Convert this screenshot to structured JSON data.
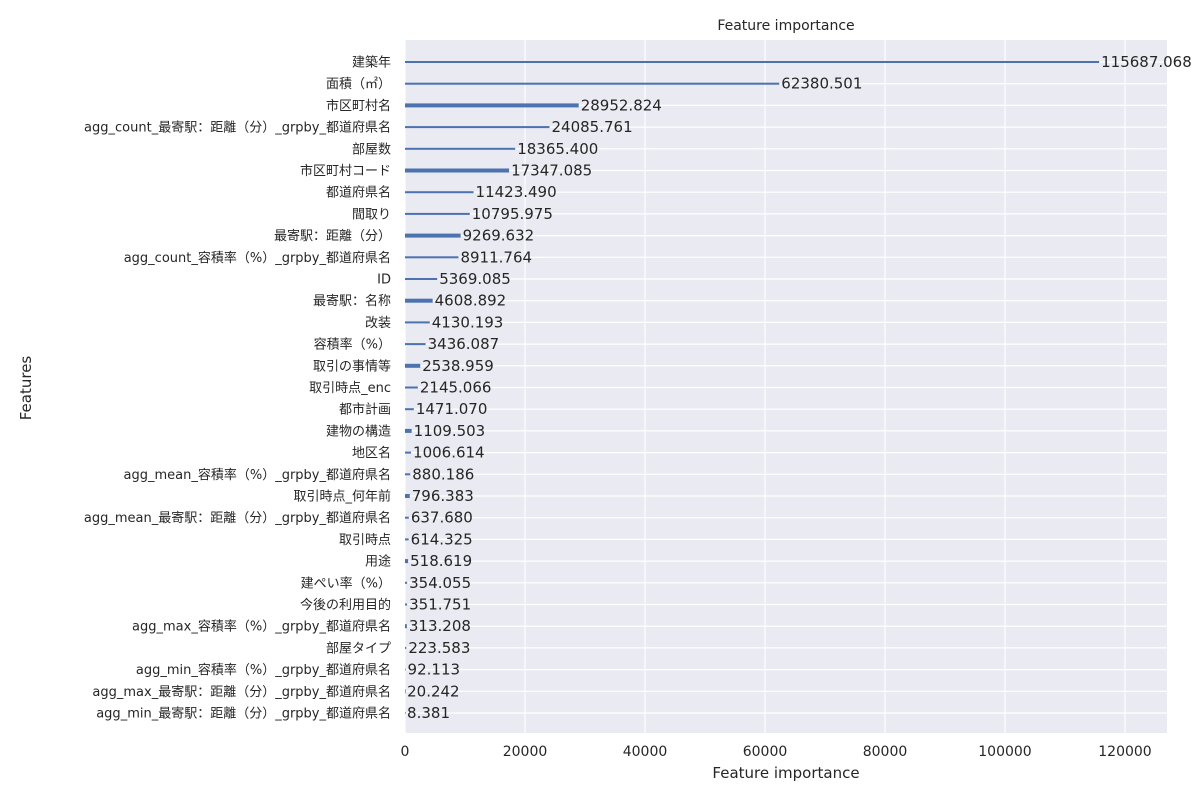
{
  "chart_data": {
    "type": "bar",
    "orientation": "horizontal",
    "title": "Feature importance",
    "xlabel": "Feature importance",
    "ylabel": "Features",
    "xlim": [
      0,
      127000
    ],
    "xticks": [
      0,
      20000,
      40000,
      60000,
      80000,
      100000,
      120000
    ],
    "grid": true,
    "bar_color": "#4c72b0",
    "background_color": "#eaeaf2",
    "categories": [
      "建築年",
      "面積（㎡）",
      "市区町村名",
      "agg_count_最寄駅：距離（分）_grpby_都道府県名",
      "部屋数",
      "市区町村コード",
      "都道府県名",
      "間取り",
      "最寄駅：距離（分）",
      "agg_count_容積率（%）_grpby_都道府県名",
      "ID",
      "最寄駅：名称",
      "改装",
      "容積率（%）",
      "取引の事情等",
      "取引時点_enc",
      "都市計画",
      "建物の構造",
      "地区名",
      "agg_mean_容積率（%）_grpby_都道府県名",
      "取引時点_何年前",
      "agg_mean_最寄駅：距離（分）_grpby_都道府県名",
      "取引時点",
      "用途",
      "建ぺい率（%）",
      "今後の利用目的",
      "agg_max_容積率（%）_grpby_都道府県名",
      "部屋タイプ",
      "agg_min_容積率（%）_grpby_都道府県名",
      "agg_max_最寄駅：距離（分）_grpby_都道府県名",
      "agg_min_最寄駅：距離（分）_grpby_都道府県名"
    ],
    "values": [
      115687.068,
      62380.501,
      28952.824,
      24085.761,
      18365.4,
      17347.085,
      11423.49,
      10795.975,
      9269.632,
      8911.764,
      5369.085,
      4608.892,
      4130.193,
      3436.087,
      2538.959,
      2145.066,
      1471.07,
      1109.503,
      1006.614,
      880.186,
      796.383,
      637.68,
      614.325,
      518.619,
      354.055,
      351.751,
      313.208,
      223.583,
      92.113,
      20.242,
      8.381
    ],
    "value_labels": [
      "115687.068",
      "62380.501",
      "28952.824",
      "24085.761",
      "18365.400",
      "17347.085",
      "11423.490",
      "10795.975",
      "9269.632",
      "8911.764",
      "5369.085",
      "4608.892",
      "4130.193",
      "3436.087",
      "2538.959",
      "2145.066",
      "1471.070",
      "1109.503",
      "1006.614",
      "880.186",
      "796.383",
      "637.680",
      "614.325",
      "518.619",
      "354.055",
      "351.751",
      "313.208",
      "223.583",
      "92.113",
      "20.242",
      "8.381"
    ],
    "bar_thickness": [
      2,
      2,
      4,
      2,
      2,
      4,
      2,
      2,
      4,
      2,
      2,
      4,
      2,
      2,
      4,
      2,
      2,
      4,
      2,
      2,
      4,
      2,
      2,
      4,
      2,
      2,
      4,
      2,
      2,
      4,
      2
    ]
  }
}
